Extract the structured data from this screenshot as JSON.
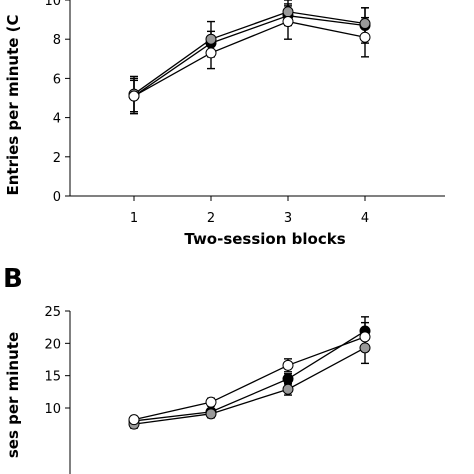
{
  "chart_data": [
    {
      "type": "line",
      "panel_label": "",
      "xlabel": "Two-session blocks",
      "ylabel": "Entries per minute (C",
      "x": [
        1,
        2,
        3,
        4
      ],
      "x_ticks": [
        "1",
        "2",
        "3",
        "4"
      ],
      "y_ticks": [
        "0",
        "2",
        "4",
        "6",
        "8",
        "10"
      ],
      "xlim": [
        0.5,
        4.5
      ],
      "ylim": [
        0,
        10
      ],
      "series": [
        {
          "marker_fill": "#000000",
          "values": [
            5.1,
            7.8,
            9.2,
            8.7
          ],
          "errors": [
            0.9,
            0.6,
            0.5,
            0.9
          ]
        },
        {
          "marker_fill": "#999999",
          "values": [
            5.2,
            8.0,
            9.4,
            8.8
          ],
          "errors": [
            0.9,
            0.9,
            0.6,
            0.8
          ]
        },
        {
          "marker_fill": "#ffffff",
          "values": [
            5.1,
            7.3,
            8.9,
            8.1
          ],
          "errors": [
            0.8,
            0.8,
            0.9,
            1.0
          ]
        }
      ]
    },
    {
      "type": "line",
      "panel_label": "B",
      "xlabel": "",
      "ylabel": "ses per minute",
      "x": [
        1,
        2,
        3,
        4
      ],
      "x_ticks": [],
      "y_ticks": [
        "10",
        "15",
        "20",
        "25"
      ],
      "xlim": [
        0.5,
        4.5
      ],
      "ylim": [
        10,
        25
      ],
      "series": [
        {
          "marker_fill": "#000000",
          "values": [
            8.0,
            9.4,
            14.5,
            21.9
          ],
          "errors": [
            0.6,
            0.5,
            0.8,
            2.2
          ]
        },
        {
          "marker_fill": "#999999",
          "values": [
            7.5,
            9.1,
            12.9,
            19.3
          ],
          "errors": [
            0.6,
            0.6,
            0.9,
            2.4
          ]
        },
        {
          "marker_fill": "#ffffff",
          "values": [
            8.2,
            10.9,
            16.6,
            21.0
          ],
          "errors": [
            0.5,
            0.6,
            1.0,
            2.2
          ]
        }
      ]
    }
  ]
}
